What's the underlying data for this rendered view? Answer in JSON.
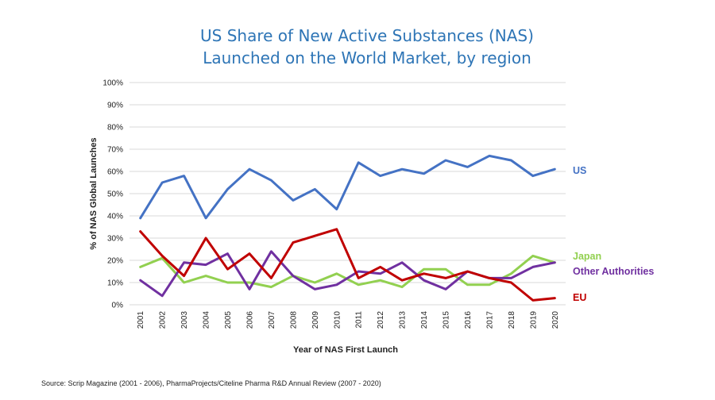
{
  "chart_data": {
    "type": "line",
    "title": [
      "US Share of New Active Substances (NAS)",
      "Launched on the World Market, by region"
    ],
    "xlabel": "Year of NAS First Launch",
    "ylabel": "% of NAS Global Launches",
    "x": [
      "2001",
      "2002",
      "2003",
      "2004",
      "2005",
      "2006",
      "2007",
      "2008",
      "2009",
      "2010",
      "2011",
      "2012",
      "2013",
      "2014",
      "2015",
      "2016",
      "2017",
      "2018",
      "2019",
      "2020"
    ],
    "ylim": [
      0,
      100
    ],
    "yticks": [
      "0%",
      "10%",
      "20%",
      "30%",
      "40%",
      "50%",
      "60%",
      "70%",
      "80%",
      "90%",
      "100%"
    ],
    "grid": true,
    "legend": "series labels at right end of lines",
    "series": [
      {
        "name": "US",
        "color": "#4472c4",
        "values": [
          39,
          55,
          58,
          39,
          52,
          61,
          56,
          47,
          52,
          43,
          64,
          58,
          61,
          59,
          65,
          62,
          67,
          65,
          58,
          61
        ]
      },
      {
        "name": "Japan",
        "color": "#92d050",
        "values": [
          17,
          21,
          10,
          13,
          10,
          10,
          8,
          13,
          10,
          14,
          9,
          11,
          8,
          16,
          16,
          9,
          9,
          14,
          22,
          19
        ]
      },
      {
        "name": "Other Authorities",
        "color": "#7030a0",
        "values": [
          11,
          4,
          19,
          18,
          23,
          7,
          24,
          13,
          7,
          9,
          15,
          14,
          19,
          11,
          7,
          15,
          12,
          12,
          17,
          19
        ]
      },
      {
        "name": "EU",
        "color": "#c00000",
        "values": [
          33,
          22,
          13,
          30,
          16,
          23,
          12,
          28,
          31,
          34,
          12,
          17,
          11,
          14,
          12,
          15,
          12,
          10,
          2,
          3
        ]
      }
    ]
  },
  "source": "Source: Scrip Magazine (2001 - 2006), PharmaProjects/Citeline Pharma R&D Annual Review (2007 - 2020)"
}
